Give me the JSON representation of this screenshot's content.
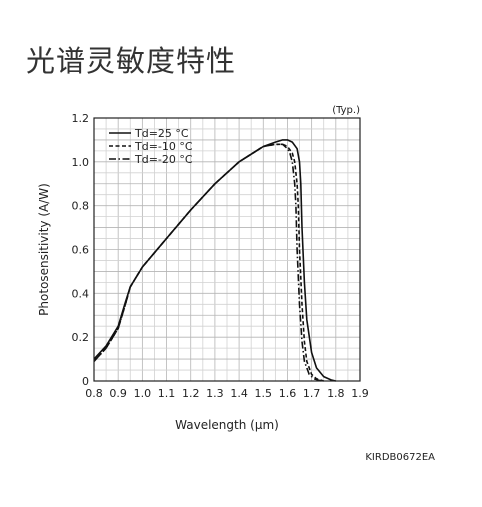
{
  "page": {
    "title": "光谱灵敏度特性",
    "code": "KIRDB0672EA"
  },
  "chart_data": {
    "type": "line",
    "note": "(Typ.)",
    "xlabel": "Wavelength (μm)",
    "ylabel": "Photosensitivity (A/W)",
    "xlim": [
      0.8,
      1.9
    ],
    "ylim": [
      0,
      1.2
    ],
    "x_ticks": [
      "0.8",
      "0.9",
      "1.0",
      "1.1",
      "1.2",
      "1.3",
      "1.4",
      "1.5",
      "1.6",
      "1.7",
      "1.8",
      "1.9"
    ],
    "y_ticks": [
      "0",
      "0.2",
      "0.4",
      "0.6",
      "0.8",
      "1.0",
      "1.2"
    ],
    "grid": true,
    "legend_position": "top-left",
    "series": [
      {
        "name": "Td=25 °C",
        "style": "solid",
        "x": [
          0.8,
          0.85,
          0.9,
          0.93,
          0.95,
          1.0,
          1.1,
          1.2,
          1.3,
          1.4,
          1.5,
          1.55,
          1.58,
          1.6,
          1.62,
          1.64,
          1.65,
          1.655,
          1.66,
          1.67,
          1.68,
          1.7,
          1.72,
          1.75,
          1.78,
          1.8
        ],
        "y": [
          0.1,
          0.16,
          0.25,
          0.36,
          0.43,
          0.52,
          0.65,
          0.78,
          0.9,
          1.0,
          1.07,
          1.09,
          1.1,
          1.1,
          1.09,
          1.06,
          1.0,
          0.9,
          0.7,
          0.45,
          0.28,
          0.13,
          0.06,
          0.02,
          0.005,
          0.0
        ]
      },
      {
        "name": "Td=-10 °C",
        "style": "dashed",
        "x": [
          0.8,
          0.85,
          0.9,
          0.93,
          0.95,
          1.0,
          1.1,
          1.2,
          1.3,
          1.4,
          1.5,
          1.55,
          1.58,
          1.6,
          1.62,
          1.63,
          1.64,
          1.645,
          1.65,
          1.66,
          1.67,
          1.68,
          1.7,
          1.72,
          1.75
        ],
        "y": [
          0.09,
          0.15,
          0.24,
          0.35,
          0.43,
          0.52,
          0.65,
          0.78,
          0.9,
          1.0,
          1.07,
          1.08,
          1.08,
          1.07,
          1.04,
          1.0,
          0.9,
          0.8,
          0.6,
          0.35,
          0.18,
          0.09,
          0.03,
          0.01,
          0.0
        ]
      },
      {
        "name": "Td=-20 °C",
        "style": "dashdot",
        "x": [
          0.8,
          0.85,
          0.9,
          0.93,
          0.95,
          1.0,
          1.1,
          1.2,
          1.3,
          1.4,
          1.5,
          1.55,
          1.58,
          1.6,
          1.61,
          1.62,
          1.63,
          1.635,
          1.64,
          1.65,
          1.66,
          1.67,
          1.69,
          1.71,
          1.74
        ],
        "y": [
          0.09,
          0.15,
          0.24,
          0.35,
          0.43,
          0.52,
          0.65,
          0.78,
          0.9,
          1.0,
          1.07,
          1.08,
          1.08,
          1.06,
          1.04,
          1.0,
          0.9,
          0.8,
          0.6,
          0.35,
          0.18,
          0.09,
          0.03,
          0.01,
          0.0
        ]
      }
    ]
  }
}
